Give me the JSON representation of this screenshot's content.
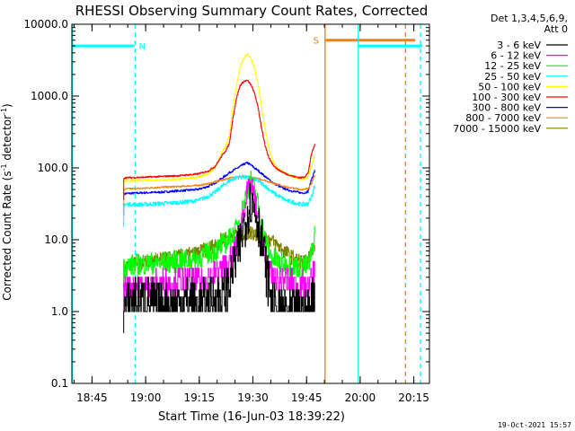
{
  "chart_data": {
    "type": "line",
    "title": "RHESSI Observing Summary Count Rates, Corrected",
    "xlabel": "Start Time (16-Jun-03 18:39:22)",
    "ylabel_prefix": "Corrected Count Rate (s",
    "ylabel_sup": "-1",
    "ylabel_suffix": " detector",
    "ylabel_end": ")",
    "x_unit": "minutes after 18:39:22",
    "xlim": [
      0,
      100
    ],
    "ylim": [
      0.1,
      10000
    ],
    "yscale": "log",
    "grid": false,
    "legend_position": "top-right",
    "legend_header": [
      "Det 1,3,4,5,6,9,",
      "Att 0"
    ],
    "timestamp": "19-Oct-2021 15:57",
    "x_ticks": [
      {
        "label": "18:45",
        "value": 5.63
      },
      {
        "label": "19:00",
        "value": 20.63
      },
      {
        "label": "19:15",
        "value": 35.63
      },
      {
        "label": "19:30",
        "value": 50.63
      },
      {
        "label": "19:45",
        "value": 65.63
      },
      {
        "label": "20:00",
        "value": 80.63
      },
      {
        "label": "20:15",
        "value": 95.63
      }
    ],
    "y_ticks": [
      {
        "label": "0.1",
        "value": 0.1
      },
      {
        "label": "1.0",
        "value": 1
      },
      {
        "label": "10.0",
        "value": 10
      },
      {
        "label": "100.0",
        "value": 100
      },
      {
        "label": "1000.0",
        "value": 1000
      },
      {
        "label": "10000.0",
        "value": 10000
      }
    ],
    "series": [
      {
        "name": "3 - 6 keV",
        "color": "#000000",
        "noise": 1.0,
        "x": [
          14.5,
          16,
          18,
          20,
          22,
          24,
          26,
          28,
          30,
          32,
          34,
          36,
          38,
          40,
          42,
          44,
          46,
          47,
          48,
          49,
          50,
          51,
          52,
          53,
          54,
          55,
          56,
          57,
          58,
          60,
          62,
          64,
          66,
          67,
          68
        ],
        "y": [
          1,
          1.4,
          1.6,
          1.4,
          1.4,
          1.2,
          1.2,
          1.2,
          1.4,
          1.4,
          1.3,
          1.2,
          1.3,
          1.6,
          1.7,
          2.5,
          6,
          8,
          16,
          24,
          35,
          28,
          18,
          10,
          5,
          2.5,
          1.2,
          1,
          1,
          1,
          1,
          1,
          1,
          1.5,
          2
        ]
      },
      {
        "name": "6 - 12 keV",
        "color": "#ff00ff",
        "noise": 0.5,
        "x": [
          14.5,
          15,
          20,
          25,
          30,
          35,
          38,
          40,
          42,
          44,
          46,
          47,
          48,
          49,
          50,
          51,
          52,
          53,
          54,
          55,
          56,
          58,
          60,
          62,
          64,
          66,
          67,
          68
        ],
        "y": [
          2,
          2.2,
          2.3,
          2.5,
          2.6,
          2.8,
          3.1,
          3.4,
          4,
          5,
          8,
          14,
          25,
          45,
          55,
          38,
          20,
          10,
          5,
          3.5,
          3,
          2.8,
          2.6,
          2.5,
          2.4,
          2.3,
          3,
          4
        ]
      },
      {
        "name": "12 - 25 keV",
        "color": "#00ff00",
        "noise": 0.45,
        "x": [
          14.5,
          15,
          20,
          25,
          30,
          35,
          38,
          40,
          42,
          44,
          46,
          47,
          48,
          49,
          50,
          51,
          52,
          53,
          54,
          55,
          56,
          58,
          60,
          62,
          64,
          66,
          67,
          68
        ],
        "y": [
          4,
          4.3,
          4.6,
          4.8,
          5,
          5.5,
          6.5,
          7,
          8.5,
          10,
          14,
          20,
          30,
          50,
          65,
          50,
          30,
          16,
          10,
          7,
          5.5,
          4.8,
          4.5,
          4.3,
          4.2,
          4.3,
          6,
          14
        ]
      },
      {
        "name": "25 - 50 keV",
        "color": "#00ffff",
        "noise": 0.08,
        "x": [
          14.5,
          15,
          20,
          25,
          30,
          35,
          38,
          40,
          42,
          44,
          46,
          48,
          50,
          52,
          54,
          56,
          58,
          60,
          62,
          64,
          65,
          66,
          67,
          68
        ],
        "y": [
          30,
          31,
          31,
          32,
          33,
          35,
          40,
          46,
          56,
          66,
          74,
          75,
          72,
          66,
          56,
          46,
          40,
          35,
          33,
          31,
          31,
          32,
          40,
          60
        ]
      },
      {
        "name": "50 - 100 keV",
        "color": "#ffff00",
        "noise": 0.04,
        "x": [
          14.5,
          15,
          20,
          25,
          30,
          35,
          38,
          40,
          41,
          42,
          43,
          44,
          45,
          46,
          47,
          48,
          49,
          50,
          51,
          52,
          53,
          54,
          55,
          56,
          57,
          58,
          60,
          62,
          64,
          65,
          66,
          67,
          68
        ],
        "y": [
          65,
          66,
          67,
          68,
          70,
          74,
          82,
          100,
          130,
          170,
          200,
          280,
          700,
          1400,
          2500,
          3300,
          3900,
          3300,
          2500,
          1500,
          700,
          350,
          190,
          130,
          105,
          95,
          82,
          75,
          70,
          70,
          75,
          105,
          160
        ]
      },
      {
        "name": "100 - 300 keV",
        "color": "#ff0000",
        "noise": 0.03,
        "x": [
          14.5,
          15,
          20,
          25,
          30,
          35,
          38,
          40,
          41,
          42,
          43,
          44,
          45,
          46,
          47,
          48,
          49,
          50,
          51,
          52,
          53,
          54,
          55,
          56,
          57,
          58,
          60,
          62,
          64,
          65,
          66,
          67,
          68
        ],
        "y": [
          72,
          73,
          74,
          76,
          78,
          82,
          90,
          105,
          125,
          150,
          175,
          220,
          500,
          950,
          1400,
          1600,
          1650,
          1450,
          1100,
          700,
          360,
          200,
          140,
          115,
          100,
          92,
          82,
          76,
          73,
          75,
          85,
          160,
          220
        ]
      },
      {
        "name": "300 - 800 keV",
        "color": "#0000ff",
        "noise": 0.04,
        "x": [
          14.5,
          15,
          20,
          25,
          30,
          35,
          38,
          40,
          42,
          44,
          46,
          48,
          49,
          50,
          51,
          52,
          54,
          56,
          58,
          60,
          62,
          64,
          65,
          66,
          67,
          68
        ],
        "y": [
          43,
          44,
          45,
          46,
          48,
          50,
          55,
          62,
          72,
          86,
          98,
          112,
          118,
          110,
          100,
          92,
          76,
          63,
          55,
          50,
          47,
          45,
          45,
          47,
          70,
          95
        ]
      },
      {
        "name": "800 - 7000 keV",
        "color": "#ff7f00",
        "noise": 0.03,
        "x": [
          14.5,
          15,
          20,
          25,
          30,
          35,
          38,
          40,
          42,
          44,
          46,
          48,
          50,
          52,
          54,
          56,
          58,
          60,
          62,
          64,
          65,
          66,
          67,
          68
        ],
        "y": [
          50,
          51,
          52,
          54,
          55,
          57,
          60,
          64,
          68,
          72,
          75,
          76,
          74,
          71,
          67,
          62,
          58,
          54,
          52,
          50,
          50,
          52,
          62,
          80
        ]
      },
      {
        "name": "7000 - 15000 keV",
        "color": "#7f7f00",
        "noise": 0.3,
        "x": [
          14.5,
          15,
          20,
          25,
          30,
          35,
          38,
          40,
          42,
          44,
          46,
          48,
          50,
          52,
          54,
          56,
          58,
          60,
          62,
          64,
          65,
          66,
          67,
          68
        ],
        "y": [
          4.5,
          4.6,
          4.8,
          5.2,
          5.8,
          6.5,
          7.5,
          8.5,
          10,
          11,
          12,
          12.5,
          12.5,
          12,
          11,
          9.5,
          8,
          6.5,
          5.5,
          5,
          4.8,
          5,
          7,
          9
        ]
      }
    ],
    "annotations": [
      {
        "type": "hline",
        "label": "N",
        "color": "#00ffff",
        "y": 5000,
        "x_start": 0,
        "x_end": 17.5
      },
      {
        "type": "hline",
        "label": "",
        "color": "#00ffff",
        "y": 5000,
        "x_start": 80,
        "x_end": 98
      },
      {
        "type": "hline",
        "label": "S",
        "color": "#ff7f00",
        "y": 6000,
        "x_start": 71,
        "x_end": 96
      },
      {
        "type": "vline",
        "color": "#00ffff",
        "x": 0.2,
        "style": "solid"
      },
      {
        "type": "vline",
        "color": "#00ffff",
        "x": 17.7,
        "style": "dashed"
      },
      {
        "type": "vline",
        "color": "#ff7f00",
        "x": 70.8,
        "style": "solid"
      },
      {
        "type": "vline",
        "color": "#00ffff",
        "x": 80.1,
        "style": "solid"
      },
      {
        "type": "vline",
        "color": "#ff7f00",
        "x": 93.3,
        "style": "dashed"
      },
      {
        "type": "vline",
        "color": "#00ffff",
        "x": 97.5,
        "style": "dashed"
      }
    ]
  }
}
